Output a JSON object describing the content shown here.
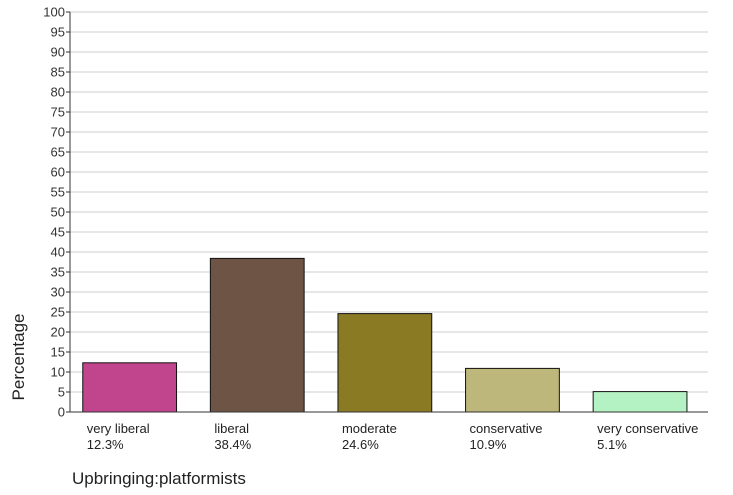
{
  "chart_data": {
    "type": "bar",
    "categories": [
      "very liberal",
      "liberal",
      "moderate",
      "conservative",
      "very conservative"
    ],
    "percent_labels": [
      "12.3%",
      "38.4%",
      "24.6%",
      "10.9%",
      "5.1%"
    ],
    "values": [
      12.3,
      38.4,
      24.6,
      10.9,
      5.1
    ],
    "colors": [
      "#c0458c",
      "#6e5444",
      "#8b7a24",
      "#bdb77b",
      "#b4f2c4"
    ],
    "title": "",
    "xlabel": "Upbringing:platformists",
    "ylabel": "Percentage",
    "ylim": [
      0,
      100
    ],
    "yticks": [
      0,
      5,
      10,
      15,
      20,
      25,
      30,
      35,
      40,
      45,
      50,
      55,
      60,
      65,
      70,
      75,
      80,
      85,
      90,
      95,
      100
    ],
    "grid": true,
    "legend": "none"
  }
}
